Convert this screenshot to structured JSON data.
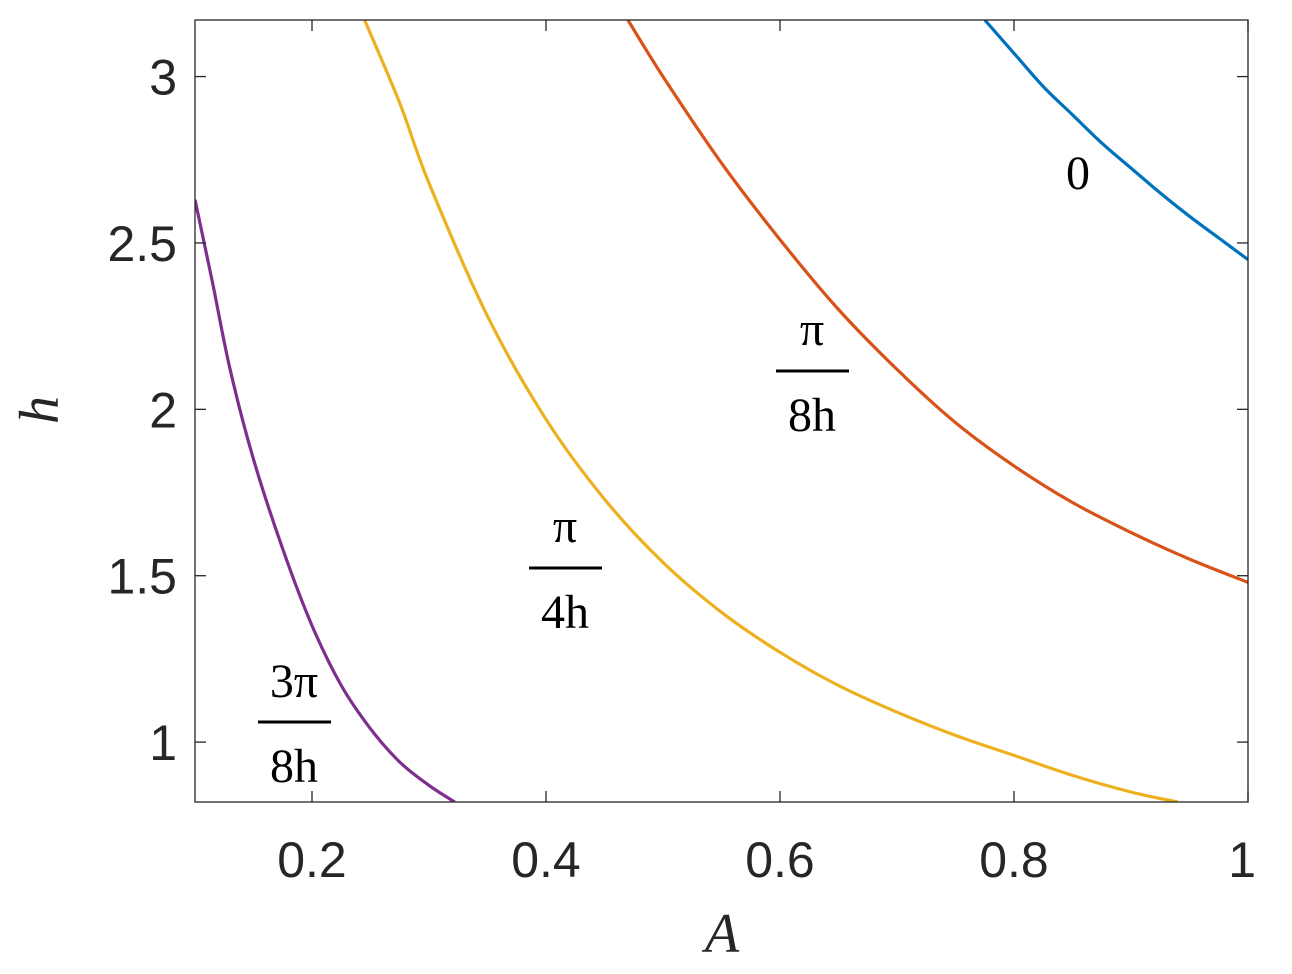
{
  "chart_data": {
    "type": "line",
    "xlabel": "A",
    "ylabel": "h",
    "xlim": [
      0.1,
      1.0
    ],
    "ylim": [
      0.82,
      3.17
    ],
    "xticks": [
      0.2,
      0.4,
      0.6,
      0.8,
      1.0
    ],
    "xtick_labels": [
      "0.2",
      "0.4",
      "0.6",
      "0.8",
      "1"
    ],
    "yticks": [
      1.0,
      1.5,
      2.0,
      2.5,
      3.0
    ],
    "ytick_labels": [
      "1",
      "1.5",
      "2",
      "2.5",
      "3"
    ],
    "grid": false,
    "series": [
      {
        "key": "zero",
        "color": "#0072bd",
        "label": "0",
        "points": [
          [
            0.775,
            3.17
          ],
          [
            0.8,
            3.07
          ],
          [
            0.825,
            2.97
          ],
          [
            0.85,
            2.885
          ],
          [
            0.875,
            2.8
          ],
          [
            0.9,
            2.725
          ],
          [
            0.925,
            2.65
          ],
          [
            0.95,
            2.58
          ],
          [
            0.975,
            2.515
          ],
          [
            1.0,
            2.45
          ]
        ]
      },
      {
        "key": "pi-over-8h",
        "color": "#d95319",
        "label_numerator": "π",
        "label_denominator": "8h",
        "points": [
          [
            0.47,
            3.17
          ],
          [
            0.5,
            3.0
          ],
          [
            0.55,
            2.74
          ],
          [
            0.6,
            2.51
          ],
          [
            0.65,
            2.3
          ],
          [
            0.7,
            2.12
          ],
          [
            0.75,
            1.96
          ],
          [
            0.8,
            1.83
          ],
          [
            0.85,
            1.72
          ],
          [
            0.9,
            1.63
          ],
          [
            0.95,
            1.55
          ],
          [
            1.0,
            1.48
          ]
        ]
      },
      {
        "key": "pi-over-4h",
        "color": "#edb120",
        "label_numerator": "π",
        "label_denominator": "4h",
        "points": [
          [
            0.245,
            3.17
          ],
          [
            0.275,
            2.92
          ],
          [
            0.3,
            2.68
          ],
          [
            0.35,
            2.28
          ],
          [
            0.4,
            1.97
          ],
          [
            0.45,
            1.73
          ],
          [
            0.5,
            1.54
          ],
          [
            0.55,
            1.39
          ],
          [
            0.6,
            1.27
          ],
          [
            0.65,
            1.17
          ],
          [
            0.7,
            1.09
          ],
          [
            0.75,
            1.02
          ],
          [
            0.8,
            0.96
          ],
          [
            0.85,
            0.9
          ],
          [
            0.9,
            0.85
          ],
          [
            0.94,
            0.82
          ]
        ]
      },
      {
        "key": "3pi-over-8h",
        "color": "#7e2f8e",
        "label_numerator": "3π",
        "label_denominator": "8h",
        "points": [
          [
            0.1,
            2.63
          ],
          [
            0.115,
            2.38
          ],
          [
            0.13,
            2.12
          ],
          [
            0.15,
            1.85
          ],
          [
            0.175,
            1.58
          ],
          [
            0.2,
            1.35
          ],
          [
            0.225,
            1.17
          ],
          [
            0.25,
            1.04
          ],
          [
            0.275,
            0.94
          ],
          [
            0.3,
            0.87
          ],
          [
            0.322,
            0.82
          ]
        ]
      }
    ]
  }
}
